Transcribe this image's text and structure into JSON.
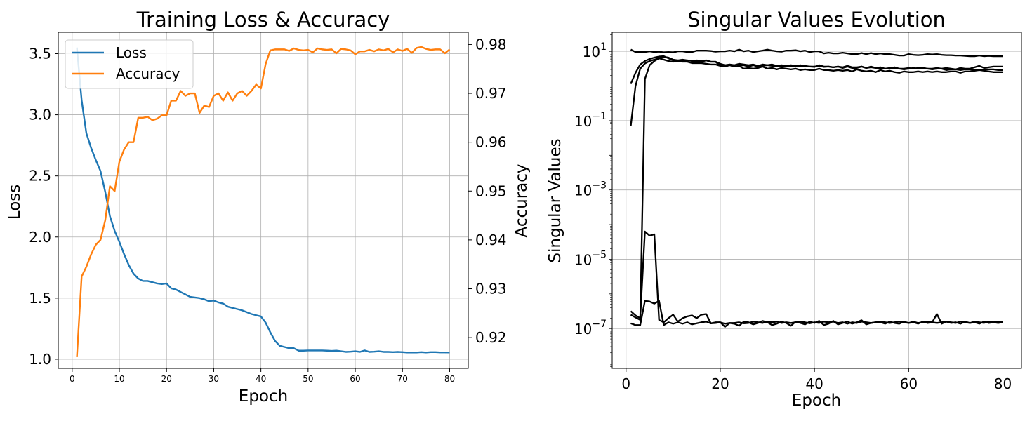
{
  "chart_data": [
    {
      "type": "line",
      "title": "Training Loss & Accuracy",
      "xlabel": "Epoch",
      "ylabel": "Loss",
      "y2label": "Accuracy",
      "xlim": [
        -2.95,
        83.95
      ],
      "ylim": [
        0.925,
        3.675
      ],
      "y2lim": [
        0.9137,
        0.9825
      ],
      "xticks": [
        0,
        10,
        20,
        30,
        40,
        50,
        60,
        70,
        80
      ],
      "yticks": [
        1.0,
        1.5,
        2.0,
        2.5,
        3.0,
        3.5
      ],
      "y2ticks": [
        0.92,
        0.93,
        0.94,
        0.95,
        0.96,
        0.97,
        0.98
      ],
      "grid": true,
      "legend_position": "top-left",
      "x": [
        1,
        2,
        3,
        4,
        5,
        6,
        7,
        8,
        9,
        10,
        11,
        12,
        13,
        14,
        15,
        16,
        17,
        18,
        19,
        20,
        21,
        22,
        23,
        24,
        25,
        26,
        27,
        28,
        29,
        30,
        31,
        32,
        33,
        34,
        35,
        36,
        37,
        38,
        39,
        40,
        41,
        42,
        43,
        44,
        45,
        46,
        47,
        48,
        49,
        50,
        51,
        52,
        53,
        54,
        55,
        56,
        57,
        58,
        59,
        60,
        61,
        62,
        63,
        64,
        65,
        66,
        67,
        68,
        69,
        70,
        71,
        72,
        73,
        74,
        75,
        76,
        77,
        78,
        79,
        80
      ],
      "series": [
        {
          "name": "Loss",
          "axis": "left",
          "color": "#1f77b4",
          "values": [
            3.55,
            3.12,
            2.85,
            2.73,
            2.63,
            2.54,
            2.37,
            2.17,
            2.05,
            1.96,
            1.86,
            1.77,
            1.7,
            1.66,
            1.64,
            1.64,
            1.63,
            1.62,
            1.615,
            1.62,
            1.58,
            1.57,
            1.55,
            1.53,
            1.51,
            1.505,
            1.5,
            1.49,
            1.475,
            1.48,
            1.465,
            1.455,
            1.43,
            1.42,
            1.41,
            1.4,
            1.385,
            1.37,
            1.36,
            1.35,
            1.3,
            1.22,
            1.15,
            1.11,
            1.1,
            1.09,
            1.09,
            1.07,
            1.07,
            1.072,
            1.072,
            1.072,
            1.072,
            1.07,
            1.068,
            1.07,
            1.065,
            1.06,
            1.062,
            1.065,
            1.06,
            1.072,
            1.06,
            1.062,
            1.065,
            1.06,
            1.06,
            1.058,
            1.06,
            1.058,
            1.055,
            1.055,
            1.055,
            1.058,
            1.055,
            1.058,
            1.058,
            1.056,
            1.056,
            1.055
          ]
        },
        {
          "name": "Accuracy",
          "axis": "right",
          "color": "#ff7f0e",
          "values": [
            0.916,
            0.9325,
            0.9345,
            0.937,
            0.939,
            0.94,
            0.944,
            0.951,
            0.95,
            0.956,
            0.9585,
            0.96,
            0.96,
            0.965,
            0.965,
            0.9652,
            0.9645,
            0.9648,
            0.9655,
            0.9655,
            0.9685,
            0.9685,
            0.9705,
            0.9695,
            0.97,
            0.97,
            0.966,
            0.9675,
            0.9672,
            0.9695,
            0.97,
            0.9685,
            0.9702,
            0.9685,
            0.97,
            0.9705,
            0.9695,
            0.9705,
            0.9718,
            0.971,
            0.976,
            0.9788,
            0.979,
            0.979,
            0.979,
            0.9787,
            0.9792,
            0.9789,
            0.9788,
            0.9789,
            0.9784,
            0.9792,
            0.979,
            0.9789,
            0.979,
            0.9782,
            0.9791,
            0.979,
            0.9788,
            0.978,
            0.9786,
            0.9786,
            0.9789,
            0.9786,
            0.979,
            0.9788,
            0.9791,
            0.9784,
            0.979,
            0.9787,
            0.9791,
            0.9783,
            0.9793,
            0.9795,
            0.9791,
            0.9789,
            0.979,
            0.979,
            0.9782,
            0.979
          ]
        }
      ]
    },
    {
      "type": "line",
      "title": "Singular Values Evolution",
      "xlabel": "Epoch",
      "ylabel": "Singular Values",
      "y_scale": "log",
      "xlim": [
        -2.95,
        83.95
      ],
      "ylim_log10_exponent": [
        -8.15,
        1.55
      ],
      "xticks": [
        0,
        20,
        40,
        60,
        80
      ],
      "ytick_exponents": [
        1,
        -1,
        -3,
        -5,
        -7
      ],
      "grid": true,
      "color": "#000000",
      "x_start": 1,
      "series_log10_values": [
        [
          1.05,
          0.98,
          0.98,
          0.98,
          1.0,
          0.98,
          0.99,
          0.97,
          0.98,
          0.97,
          1.0,
          1.0,
          0.98,
          0.98,
          1.02,
          1.02,
          1.02,
          1.01,
          0.99,
          1.0,
          1.0,
          1.02,
          1.0,
          1.05,
          1.0,
          1.02,
          0.98,
          1.0,
          1.02,
          1.05,
          1.02,
          1.0,
          0.99,
          1.02,
          1.02,
          1.03,
          1.0,
          1.02,
          0.98,
          1.0,
          1.0,
          0.94,
          0.96,
          0.94,
          0.94,
          0.96,
          0.94,
          0.92,
          0.92,
          0.95,
          0.92,
          0.95,
          0.92,
          0.94,
          0.92,
          0.92,
          0.9,
          0.88,
          0.88,
          0.92,
          0.9,
          0.89,
          0.9,
          0.92,
          0.91,
          0.92,
          0.9,
          0.89,
          0.89,
          0.88,
          0.88,
          0.87,
          0.86,
          0.86,
          0.88,
          0.86,
          0.87,
          0.86,
          0.86,
          0.86
        ],
        [
          0.06,
          0.38,
          0.62,
          0.72,
          0.78,
          0.82,
          0.85,
          0.86,
          0.8,
          0.74,
          0.74,
          0.72,
          0.74,
          0.73,
          0.74,
          0.73,
          0.74,
          0.7,
          0.7,
          0.64,
          0.6,
          0.62,
          0.6,
          0.64,
          0.62,
          0.6,
          0.62,
          0.58,
          0.62,
          0.6,
          0.62,
          0.58,
          0.6,
          0.58,
          0.56,
          0.56,
          0.6,
          0.56,
          0.56,
          0.55,
          0.6,
          0.56,
          0.56,
          0.54,
          0.56,
          0.52,
          0.56,
          0.52,
          0.52,
          0.56,
          0.52,
          0.54,
          0.52,
          0.52,
          0.5,
          0.52,
          0.52,
          0.5,
          0.5,
          0.52,
          0.5,
          0.52,
          0.52,
          0.5,
          0.5,
          0.52,
          0.5,
          0.52,
          0.5,
          0.48,
          0.52,
          0.5,
          0.5,
          0.54,
          0.58,
          0.52,
          0.54,
          0.56,
          0.56,
          0.56
        ],
        [
          -1.15,
          0.0,
          0.5,
          0.65,
          0.72,
          0.76,
          0.8,
          0.84,
          0.82,
          0.76,
          0.74,
          0.76,
          0.74,
          0.72,
          0.72,
          0.7,
          0.74,
          0.7,
          0.7,
          0.58,
          0.56,
          0.6,
          0.56,
          0.58,
          0.5,
          0.52,
          0.5,
          0.52,
          0.56,
          0.5,
          0.52,
          0.48,
          0.52,
          0.5,
          0.48,
          0.5,
          0.46,
          0.48,
          0.46,
          0.46,
          0.5,
          0.46,
          0.46,
          0.44,
          0.46,
          0.44,
          0.46,
          0.42,
          0.48,
          0.44,
          0.42,
          0.44,
          0.4,
          0.46,
          0.42,
          0.44,
          0.4,
          0.38,
          0.42,
          0.4,
          0.4,
          0.42,
          0.4,
          0.42,
          0.4,
          0.42,
          0.4,
          0.4,
          0.42,
          0.42,
          0.38,
          0.42,
          0.42,
          0.44,
          0.46,
          0.44,
          0.42,
          0.4,
          0.4,
          0.4
        ],
        [
          -6.85,
          -6.9,
          -6.9,
          -6.2,
          -6.22,
          -6.28,
          -6.2,
          -6.9,
          -6.82,
          -6.86,
          -6.82,
          -6.86,
          -6.82,
          -6.88,
          -6.85,
          -6.82,
          -6.8,
          -6.85,
          -6.84,
          -6.82,
          -6.86,
          -6.84,
          -6.84,
          -6.82,
          -6.85,
          -6.84,
          -6.8,
          -6.82,
          -6.84,
          -6.8,
          -6.82,
          -6.8,
          -6.84,
          -6.82,
          -6.84,
          -6.82,
          -6.8,
          -6.82,
          -6.85,
          -6.82,
          -6.84,
          -6.8,
          -6.82,
          -6.8,
          -6.84,
          -6.82,
          -6.86,
          -6.82,
          -6.84,
          -6.8,
          -6.82,
          -6.84,
          -6.82,
          -6.8,
          -6.82,
          -6.84,
          -6.82,
          -6.8,
          -6.82,
          -6.84,
          -6.8,
          -6.84,
          -6.82,
          -6.8,
          -6.82,
          -6.84,
          -6.82,
          -6.8,
          -6.82,
          -6.84,
          -6.8,
          -6.82,
          -6.84,
          -6.8,
          -6.82,
          -6.84,
          -6.8,
          -6.82,
          -6.84,
          -6.82
        ],
        [
          -6.6,
          -6.68,
          -6.75,
          0.2,
          0.6,
          0.72,
          0.8,
          0.76,
          0.72,
          0.7,
          0.72,
          0.7,
          0.7,
          0.66,
          0.66,
          0.66,
          0.64,
          0.62,
          0.62,
          0.58,
          0.58,
          0.6,
          0.56,
          0.58,
          0.6,
          0.56,
          0.6,
          0.56,
          0.58,
          0.6,
          0.58,
          0.56,
          0.58,
          0.56,
          0.6,
          0.58,
          0.56,
          0.58,
          0.56,
          0.56,
          0.58,
          0.55,
          0.56,
          0.54,
          0.56,
          0.54,
          0.58,
          0.54,
          0.54,
          0.56,
          0.52,
          0.56,
          0.52,
          0.54,
          0.5,
          0.5,
          0.54,
          0.5,
          0.48,
          0.5,
          0.52,
          0.5,
          0.52,
          0.5,
          0.48,
          0.5,
          0.5,
          0.46,
          0.48,
          0.48,
          0.46,
          0.48,
          0.48,
          0.46,
          0.46,
          0.48,
          0.48,
          0.48,
          0.46,
          0.46
        ],
        [
          -6.5,
          -6.62,
          -6.7,
          -4.2,
          -4.32,
          -4.28,
          -6.75,
          -6.82,
          -6.7,
          -6.6,
          -6.8,
          -6.7,
          -6.65,
          -6.62,
          -6.7,
          -6.6,
          -6.58,
          -6.85,
          -6.82,
          -6.82,
          -6.95,
          -6.84,
          -6.86,
          -6.92,
          -6.8,
          -6.82,
          -6.88,
          -6.84,
          -6.78,
          -6.82,
          -6.9,
          -6.86,
          -6.8,
          -6.84,
          -6.92,
          -6.8,
          -6.84,
          -6.88,
          -6.8,
          -6.84,
          -6.78,
          -6.9,
          -6.86,
          -6.78,
          -6.88,
          -6.84,
          -6.8,
          -6.86,
          -6.82,
          -6.76,
          -6.88,
          -6.84,
          -6.82,
          -6.82,
          -6.86,
          -6.8,
          -6.84,
          -6.86,
          -6.8,
          -6.84,
          -6.82,
          -6.86,
          -6.8,
          -6.84,
          -6.82,
          -6.58,
          -6.86,
          -6.8,
          -6.84,
          -6.82,
          -6.86,
          -6.8,
          -6.84,
          -6.82,
          -6.86,
          -6.8,
          -6.84,
          -6.82,
          -6.8,
          -6.82
        ]
      ]
    }
  ]
}
